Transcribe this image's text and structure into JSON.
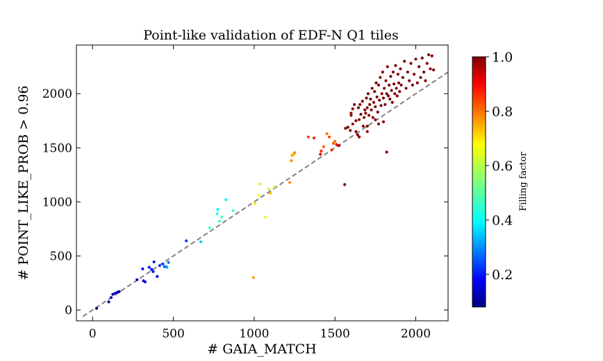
{
  "chart_data": {
    "type": "scatter",
    "title": "Point-like validation of EDF-N Q1 tiles",
    "xlabel": "# GAIA_MATCH",
    "ylabel": "# POINT_LIKE_PROB > 0.96",
    "xlim": [
      -100,
      2200
    ],
    "ylim": [
      -100,
      2450
    ],
    "xticks": [
      0,
      500,
      1000,
      1500,
      2000
    ],
    "yticks": [
      0,
      500,
      1000,
      1500,
      2000
    ],
    "xtick_labels": [
      "0",
      "500",
      "1000",
      "1500",
      "2000"
    ],
    "ytick_labels": [
      "0",
      "500",
      "1000",
      "1500",
      "2000"
    ],
    "reference_line": {
      "style": "dashed",
      "color": "#808080",
      "slope": 1,
      "intercept": 0
    },
    "colorbar": {
      "label": "Filling factor",
      "colormap": "jet",
      "range": [
        0.08,
        1.0
      ],
      "ticks": [
        0.2,
        0.4,
        0.6,
        0.8,
        1.0
      ],
      "tick_labels": [
        "0.2",
        "0.4",
        "0.6",
        "0.8",
        "1.0"
      ]
    },
    "point_color_variable": "Filling factor",
    "points": [
      [
        25,
        15,
        0.08
      ],
      [
        100,
        75,
        0.1
      ],
      [
        115,
        115,
        0.12
      ],
      [
        125,
        145,
        0.12
      ],
      [
        140,
        155,
        0.13
      ],
      [
        155,
        165,
        0.13
      ],
      [
        165,
        170,
        0.12
      ],
      [
        275,
        280,
        0.15
      ],
      [
        310,
        380,
        0.2
      ],
      [
        315,
        270,
        0.18
      ],
      [
        325,
        260,
        0.18
      ],
      [
        350,
        395,
        0.22
      ],
      [
        365,
        375,
        0.2
      ],
      [
        375,
        355,
        0.22
      ],
      [
        380,
        445,
        0.22
      ],
      [
        400,
        310,
        0.2
      ],
      [
        415,
        410,
        0.24
      ],
      [
        435,
        425,
        0.24
      ],
      [
        445,
        400,
        0.28
      ],
      [
        455,
        400,
        0.3
      ],
      [
        460,
        395,
        0.35
      ],
      [
        470,
        440,
        0.3
      ],
      [
        580,
        640,
        0.25
      ],
      [
        670,
        630,
        0.38
      ],
      [
        725,
        760,
        0.48
      ],
      [
        770,
        890,
        0.45
      ],
      [
        775,
        930,
        0.42
      ],
      [
        785,
        820,
        0.48
      ],
      [
        800,
        860,
        0.5
      ],
      [
        825,
        1020,
        0.42
      ],
      [
        870,
        920,
        0.48
      ],
      [
        995,
        300,
        0.75
      ],
      [
        1005,
        985,
        0.68
      ],
      [
        1030,
        1060,
        0.65
      ],
      [
        1035,
        1165,
        0.6
      ],
      [
        1070,
        860,
        0.62
      ],
      [
        1090,
        1120,
        0.6
      ],
      [
        1100,
        1080,
        0.72
      ],
      [
        1125,
        1140,
        0.62
      ],
      [
        1220,
        1180,
        0.76
      ],
      [
        1230,
        1380,
        0.76
      ],
      [
        1235,
        1430,
        0.74
      ],
      [
        1245,
        1440,
        0.72
      ],
      [
        1250,
        1455,
        0.76
      ],
      [
        1335,
        1600,
        0.82
      ],
      [
        1370,
        1590,
        0.85
      ],
      [
        1410,
        1440,
        0.9
      ],
      [
        1415,
        1470,
        0.85
      ],
      [
        1430,
        1510,
        0.8
      ],
      [
        1450,
        1630,
        0.78
      ],
      [
        1465,
        1600,
        0.82
      ],
      [
        1480,
        1480,
        0.85
      ],
      [
        1490,
        1540,
        0.8
      ],
      [
        1500,
        1560,
        0.78
      ],
      [
        1510,
        1530,
        0.9
      ],
      [
        1525,
        1520,
        0.95
      ],
      [
        1560,
        1160,
        1.0
      ],
      [
        1820,
        1460,
        1.0
      ],
      [
        1565,
        1680,
        1.0
      ],
      [
        1580,
        1690,
        1.0
      ],
      [
        1595,
        1660,
        1.0
      ],
      [
        1600,
        1800,
        1.0
      ],
      [
        1610,
        1860,
        1.0
      ],
      [
        1620,
        1900,
        1.0
      ],
      [
        1630,
        1750,
        1.0
      ],
      [
        1640,
        1620,
        1.0
      ],
      [
        1645,
        1870,
        1.0
      ],
      [
        1655,
        1900,
        1.0
      ],
      [
        1660,
        1810,
        1.0
      ],
      [
        1670,
        1930,
        1.0
      ],
      [
        1675,
        1700,
        1.0
      ],
      [
        1680,
        1780,
        1.0
      ],
      [
        1685,
        1850,
        1.0
      ],
      [
        1690,
        1820,
        1.0
      ],
      [
        1695,
        1960,
        1.0
      ],
      [
        1700,
        1870,
        1.0
      ],
      [
        1705,
        2000,
        1.0
      ],
      [
        1710,
        1800,
        1.0
      ],
      [
        1715,
        1900,
        1.0
      ],
      [
        1720,
        1950,
        1.0
      ],
      [
        1725,
        1850,
        1.0
      ],
      [
        1730,
        2050,
        1.0
      ],
      [
        1735,
        1780,
        1.0
      ],
      [
        1740,
        1920,
        1.0
      ],
      [
        1745,
        2020,
        1.0
      ],
      [
        1750,
        1880,
        1.0
      ],
      [
        1755,
        2100,
        1.0
      ],
      [
        1760,
        1970,
        1.0
      ],
      [
        1765,
        1830,
        1.0
      ],
      [
        1770,
        2080,
        1.0
      ],
      [
        1775,
        1940,
        1.0
      ],
      [
        1780,
        2150,
        1.0
      ],
      [
        1785,
        1890,
        1.0
      ],
      [
        1790,
        2000,
        1.0
      ],
      [
        1795,
        2200,
        1.0
      ],
      [
        1800,
        1960,
        1.0
      ],
      [
        1805,
        2050,
        1.0
      ],
      [
        1810,
        1900,
        1.0
      ],
      [
        1815,
        2120,
        1.0
      ],
      [
        1820,
        2000,
        1.0
      ],
      [
        1825,
        2250,
        1.0
      ],
      [
        1830,
        1980,
        1.0
      ],
      [
        1835,
        2080,
        1.0
      ],
      [
        1840,
        1950,
        1.0
      ],
      [
        1845,
        2160,
        1.0
      ],
      [
        1850,
        2030,
        1.0
      ],
      [
        1855,
        1920,
        1.0
      ],
      [
        1860,
        2200,
        1.0
      ],
      [
        1865,
        2090,
        1.0
      ],
      [
        1870,
        2000,
        1.0
      ],
      [
        1875,
        2260,
        1.0
      ],
      [
        1880,
        2050,
        1.0
      ],
      [
        1885,
        1980,
        1.0
      ],
      [
        1890,
        2180,
        1.0
      ],
      [
        1895,
        2100,
        1.0
      ],
      [
        1900,
        2020,
        1.0
      ],
      [
        1905,
        2230,
        1.0
      ],
      [
        1910,
        2080,
        1.0
      ],
      [
        1920,
        2150,
        1.0
      ],
      [
        1930,
        2300,
        1.0
      ],
      [
        1940,
        2050,
        1.0
      ],
      [
        1950,
        2200,
        1.0
      ],
      [
        1960,
        2120,
        1.0
      ],
      [
        1970,
        2280,
        1.0
      ],
      [
        1980,
        2080,
        1.0
      ],
      [
        1990,
        2180,
        1.0
      ],
      [
        2000,
        2320,
        1.0
      ],
      [
        2010,
        2100,
        1.0
      ],
      [
        2020,
        2250,
        1.0
      ],
      [
        2030,
        2150,
        1.0
      ],
      [
        2040,
        2330,
        1.0
      ],
      [
        2050,
        2200,
        1.0
      ],
      [
        2060,
        2120,
        1.0
      ],
      [
        2070,
        2280,
        1.0
      ],
      [
        2080,
        2360,
        1.0
      ],
      [
        2090,
        2230,
        1.0
      ],
      [
        2100,
        2350,
        1.0
      ],
      [
        2110,
        2220,
        1.0
      ],
      [
        1610,
        1720,
        0.98
      ],
      [
        1630,
        1650,
        0.98
      ],
      [
        1650,
        1760,
        0.99
      ],
      [
        1700,
        1700,
        0.99
      ],
      [
        1750,
        1760,
        0.98
      ],
      [
        1770,
        1720,
        0.99
      ],
      [
        1800,
        1740,
        0.99
      ],
      [
        1650,
        1600,
        0.98
      ],
      [
        1700,
        1650,
        0.99
      ],
      [
        1600,
        1820,
        0.98
      ]
    ]
  }
}
